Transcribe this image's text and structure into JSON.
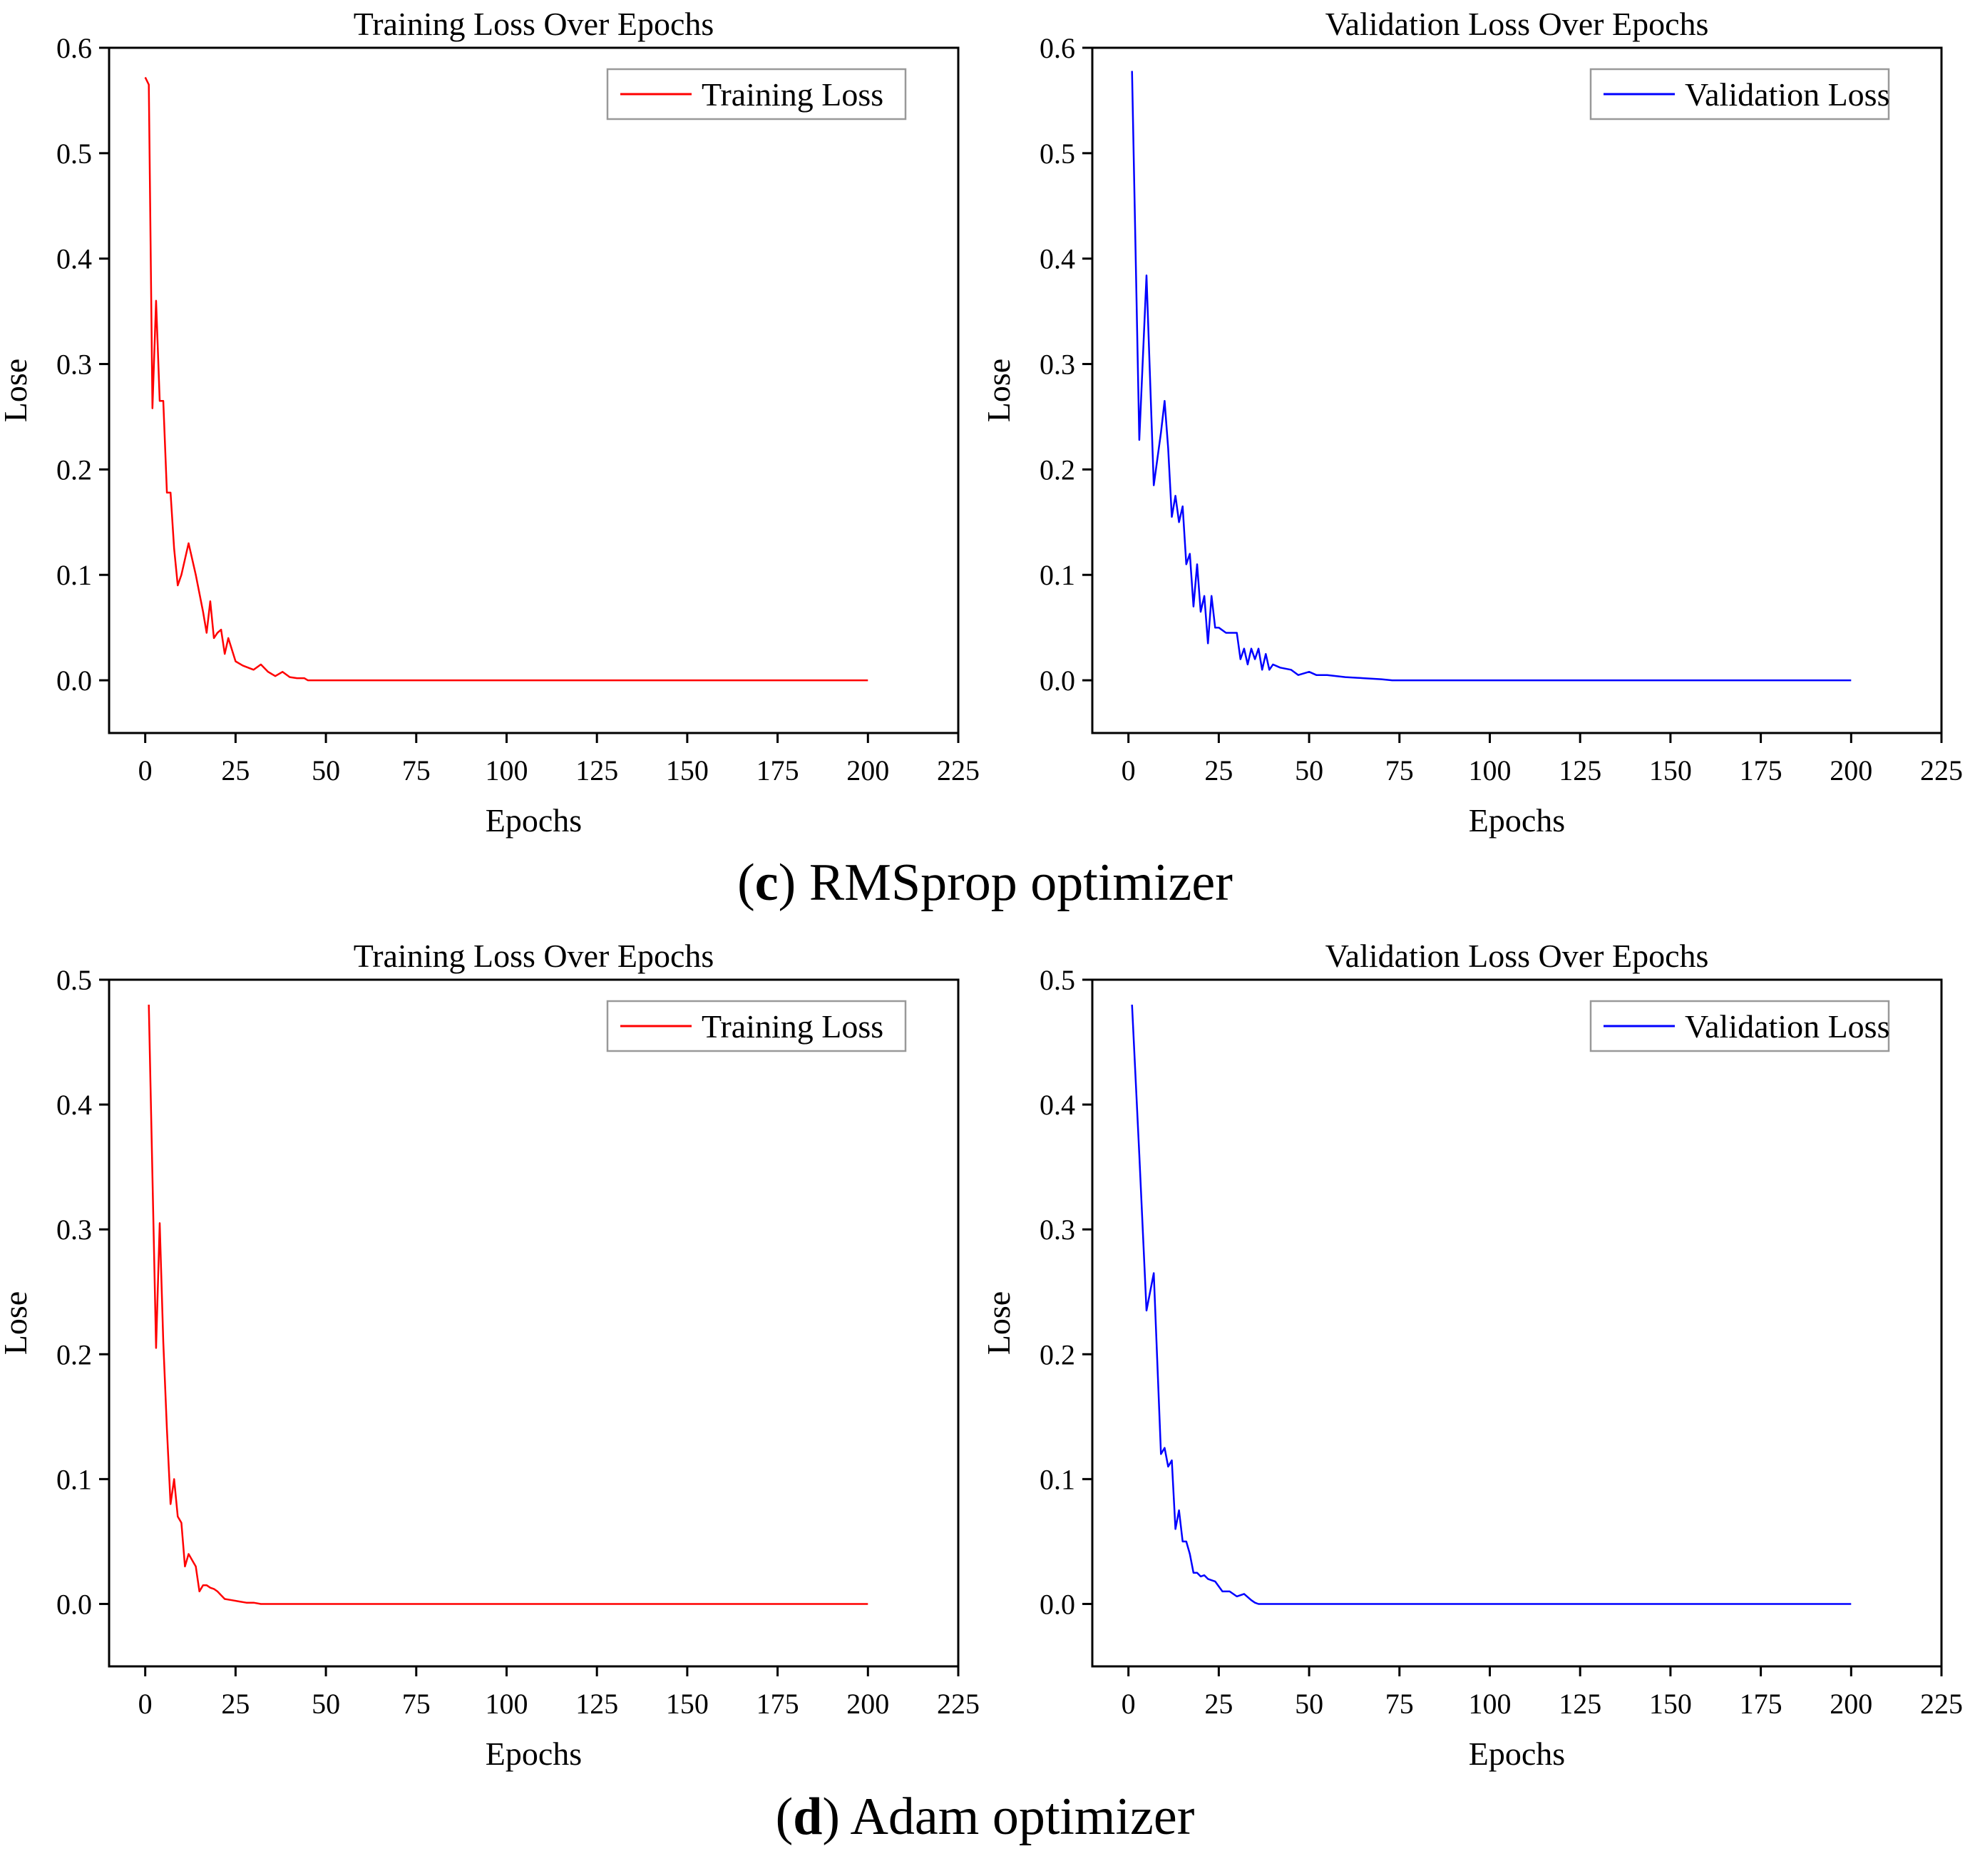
{
  "captions": [
    {
      "letter": "c",
      "text": "RMSprop optimizer"
    },
    {
      "letter": "d",
      "text": "Adam optimizer"
    }
  ],
  "colors": {
    "training": "#ff0000",
    "validation": "#0000ff",
    "axis": "#000000",
    "legend_border": "#999999"
  },
  "chart_data": [
    {
      "type": "line",
      "title": "Training Loss Over Epochs",
      "xlabel": "Epochs",
      "ylabel": "Lose",
      "xlim": [
        -10,
        225
      ],
      "ylim": [
        -0.05,
        0.6
      ],
      "xticks": [
        0,
        25,
        50,
        75,
        100,
        125,
        150,
        175,
        200,
        225
      ],
      "yticks": [
        0.0,
        0.1,
        0.2,
        0.3,
        0.4,
        0.5,
        0.6
      ],
      "grid": false,
      "legend": "top-right",
      "series": [
        {
          "name": "Training Loss",
          "color": "#ff0000",
          "x": [
            0,
            1,
            2,
            3,
            4,
            5,
            6,
            7,
            8,
            9,
            10,
            12,
            14,
            16,
            17,
            18,
            19,
            20,
            21,
            22,
            23,
            25,
            27,
            30,
            32,
            34,
            36,
            38,
            40,
            42,
            44,
            45,
            46,
            50,
            100,
            150,
            200
          ],
          "y": [
            0.572,
            0.565,
            0.258,
            0.36,
            0.265,
            0.265,
            0.178,
            0.178,
            0.125,
            0.09,
            0.1,
            0.13,
            0.1,
            0.065,
            0.045,
            0.075,
            0.04,
            0.045,
            0.048,
            0.025,
            0.04,
            0.018,
            0.014,
            0.01,
            0.015,
            0.008,
            0.004,
            0.008,
            0.003,
            0.002,
            0.002,
            0.0,
            0.0,
            0.0,
            0.0,
            0.0,
            0.0
          ]
        }
      ]
    },
    {
      "type": "line",
      "title": "Validation Loss Over Epochs",
      "xlabel": "Epochs",
      "ylabel": "Lose",
      "xlim": [
        -10,
        225
      ],
      "ylim": [
        -0.05,
        0.6
      ],
      "xticks": [
        0,
        25,
        50,
        75,
        100,
        125,
        150,
        175,
        200,
        225
      ],
      "yticks": [
        0.0,
        0.1,
        0.2,
        0.3,
        0.4,
        0.5,
        0.6
      ],
      "grid": false,
      "legend": "top-right",
      "series": [
        {
          "name": "Validation Loss",
          "color": "#0000ff",
          "x": [
            1,
            3,
            5,
            7,
            9,
            10,
            11,
            12,
            13,
            14,
            15,
            16,
            17,
            18,
            19,
            20,
            21,
            22,
            23,
            24,
            25,
            27,
            30,
            31,
            32,
            33,
            34,
            35,
            36,
            37,
            38,
            39,
            40,
            42,
            45,
            47,
            50,
            52,
            55,
            60,
            65,
            70,
            73,
            100,
            150,
            200
          ],
          "y": [
            0.578,
            0.228,
            0.384,
            0.185,
            0.235,
            0.265,
            0.22,
            0.155,
            0.175,
            0.15,
            0.165,
            0.11,
            0.12,
            0.07,
            0.11,
            0.065,
            0.08,
            0.035,
            0.08,
            0.05,
            0.05,
            0.045,
            0.045,
            0.02,
            0.03,
            0.015,
            0.03,
            0.02,
            0.03,
            0.01,
            0.025,
            0.01,
            0.015,
            0.012,
            0.01,
            0.005,
            0.008,
            0.005,
            0.005,
            0.003,
            0.002,
            0.001,
            0.0,
            0.0,
            0.0,
            0.0
          ]
        }
      ]
    },
    {
      "type": "line",
      "title": "Training Loss Over Epochs",
      "xlabel": "Epochs",
      "ylabel": "Lose",
      "xlim": [
        -10,
        225
      ],
      "ylim": [
        -0.05,
        0.5
      ],
      "xticks": [
        0,
        25,
        50,
        75,
        100,
        125,
        150,
        175,
        200,
        225
      ],
      "yticks": [
        0.0,
        0.1,
        0.2,
        0.3,
        0.4,
        0.5
      ],
      "grid": false,
      "legend": "top-right",
      "series": [
        {
          "name": "Training Loss",
          "color": "#ff0000",
          "x": [
            1,
            3,
            4,
            5,
            6,
            7,
            8,
            9,
            10,
            11,
            12,
            13,
            14,
            15,
            16,
            17,
            18,
            19,
            20,
            21,
            22,
            24,
            26,
            28,
            30,
            32,
            34,
            50,
            100,
            150,
            200
          ],
          "y": [
            0.48,
            0.205,
            0.305,
            0.21,
            0.14,
            0.08,
            0.1,
            0.07,
            0.065,
            0.03,
            0.04,
            0.035,
            0.03,
            0.01,
            0.015,
            0.015,
            0.013,
            0.012,
            0.01,
            0.007,
            0.004,
            0.003,
            0.002,
            0.001,
            0.001,
            0.0,
            0.0,
            0.0,
            0.0,
            0.0,
            0.0
          ]
        }
      ]
    },
    {
      "type": "line",
      "title": "Validation Loss Over Epochs",
      "xlabel": "Epochs",
      "ylabel": "Lose",
      "xlim": [
        -10,
        225
      ],
      "ylim": [
        -0.05,
        0.5
      ],
      "xticks": [
        0,
        25,
        50,
        75,
        100,
        125,
        150,
        175,
        200,
        225
      ],
      "yticks": [
        0.0,
        0.1,
        0.2,
        0.3,
        0.4,
        0.5
      ],
      "grid": false,
      "legend": "top-right",
      "series": [
        {
          "name": "Validation Loss",
          "color": "#0000ff",
          "x": [
            1,
            3,
            5,
            7,
            9,
            10,
            11,
            12,
            13,
            14,
            15,
            16,
            17,
            18,
            19,
            20,
            21,
            22,
            24,
            26,
            28,
            30,
            32,
            34,
            35,
            36,
            50,
            100,
            150,
            200
          ],
          "y": [
            0.48,
            0.36,
            0.235,
            0.265,
            0.12,
            0.125,
            0.11,
            0.115,
            0.06,
            0.075,
            0.05,
            0.05,
            0.04,
            0.025,
            0.025,
            0.022,
            0.023,
            0.02,
            0.018,
            0.01,
            0.01,
            0.006,
            0.008,
            0.003,
            0.001,
            0.0,
            0.0,
            0.0,
            0.0,
            0.0
          ]
        }
      ]
    }
  ]
}
